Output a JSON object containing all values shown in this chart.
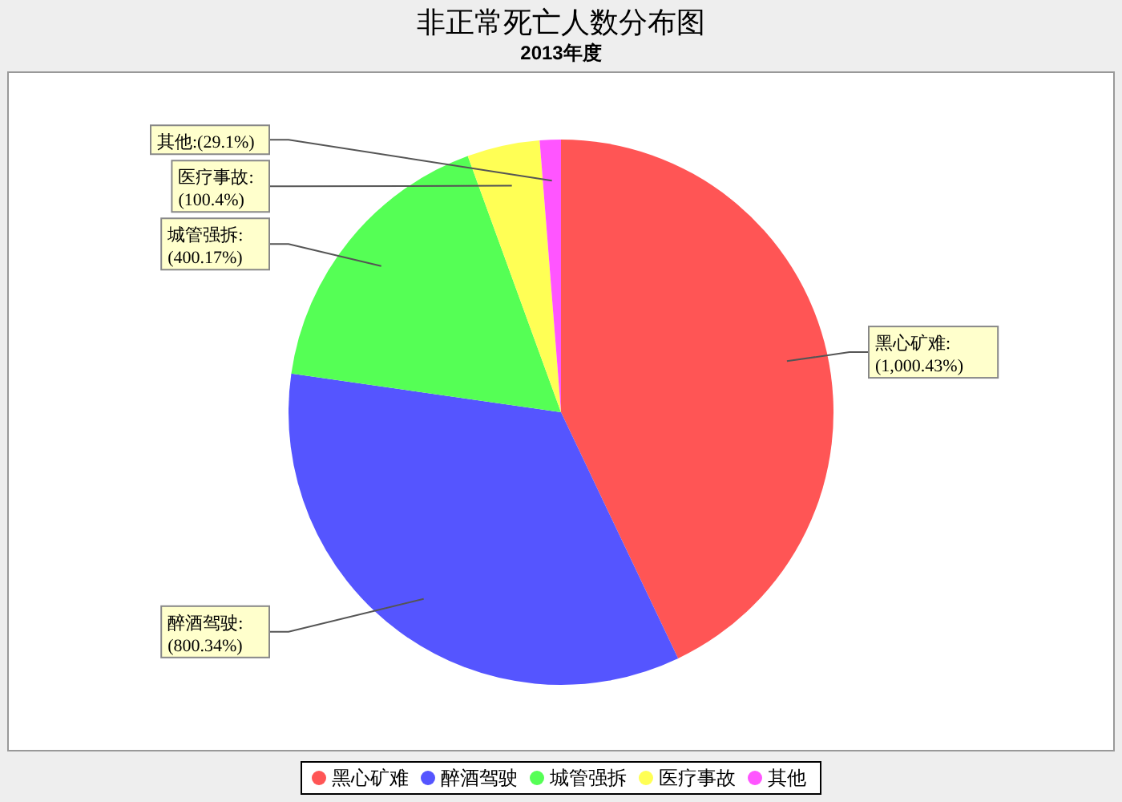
{
  "chart_data": {
    "type": "pie",
    "title": "非正常死亡人数分布图",
    "subtitle": "2013年度",
    "categories": [
      "黑心矿难",
      "醉酒驾驶",
      "城管强拆",
      "医疗事故",
      "其他"
    ],
    "values": [
      1000.43,
      800.34,
      400.17,
      100.4,
      29.1
    ],
    "colors": [
      "#ff5555",
      "#5555ff",
      "#55ff55",
      "#ffff55",
      "#ff55ff"
    ],
    "value_labels": [
      "黑心矿难:(1,000.43%)",
      "醉酒驾驶:(800.34%)",
      "城管强拆:(400.17%)",
      "医疗事故:(100.4%)",
      "其他:(29.1%)"
    ],
    "legend": "bottom"
  }
}
